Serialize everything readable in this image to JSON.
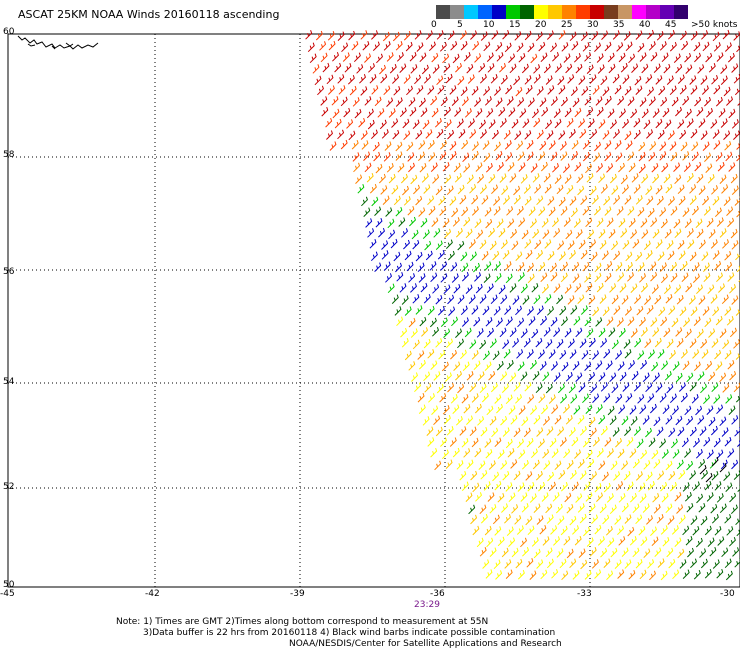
{
  "title": "ASCAT 25KM NOAA Winds 20160118 ascending",
  "legend": {
    "colors": [
      "#4b4b4b",
      "#8c8c8c",
      "#00c8ff",
      "#0064ff",
      "#0000c8",
      "#00c800",
      "#006400",
      "#ffff00",
      "#ffc800",
      "#ff8200",
      "#ff3c00",
      "#c80000",
      "#783c1e",
      "#c89664",
      "#ff00ff",
      "#b400c8",
      "#6400b4",
      "#32006e"
    ],
    "labels": [
      "0",
      "5",
      "10",
      "15",
      "20",
      "25",
      "30",
      "35",
      "40",
      "45",
      ">50 knots"
    ]
  },
  "axes": {
    "lat_labels": [
      "60",
      "58",
      "56",
      "54",
      "52",
      "50"
    ],
    "lon_labels": [
      "-45",
      "-42",
      "-39",
      "-36",
      "-33",
      "-30"
    ]
  },
  "time_label": "23:29",
  "notes": [
    "Note: 1) Times are GMT 2)Times along bottom correspond to measurement at 55N",
    "3)Data buffer is 22 hrs from 20160118 4) Black wind barbs indicate possible contamination",
    "NOAA/NESDIS/Center for Satellite Applications and Research"
  ]
}
